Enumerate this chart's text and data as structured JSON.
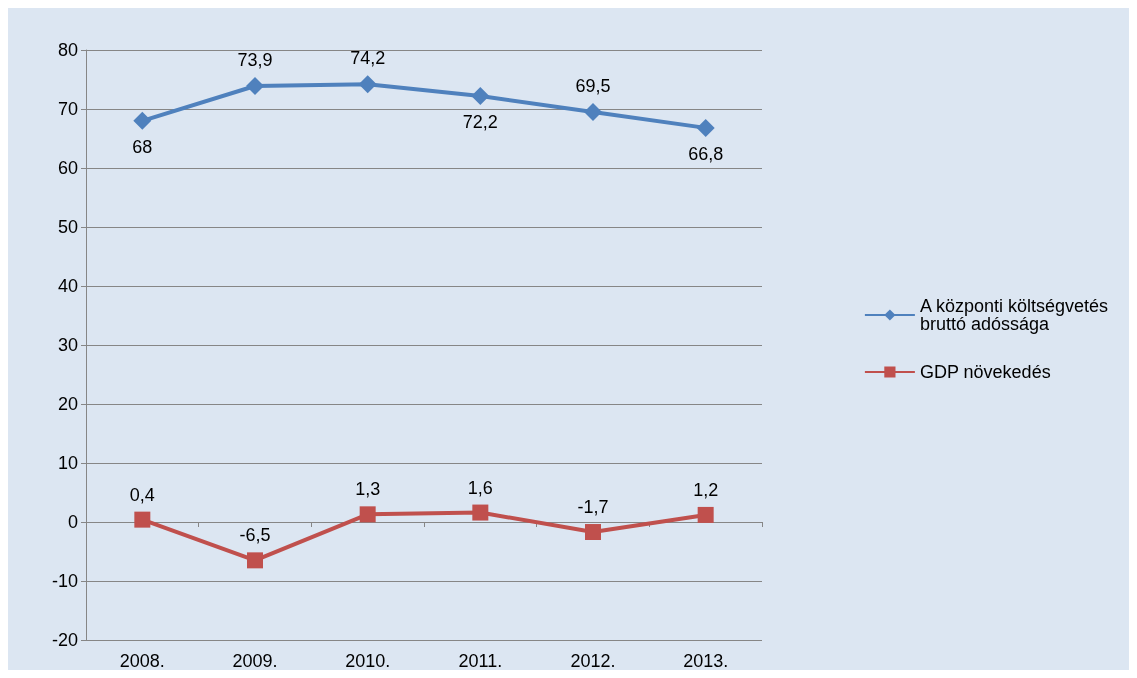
{
  "chart_data": {
    "type": "line",
    "categories": [
      "2008.",
      "2009.",
      "2010.",
      "2011.",
      "2012.",
      "2013."
    ],
    "series": [
      {
        "name": "A központi költségvetés bruttó adóssága",
        "color": "#4f81bd",
        "marker": "diamond",
        "values": [
          68,
          73.9,
          74.2,
          72.2,
          69.5,
          66.8
        ],
        "value_labels": [
          "68",
          "73,9",
          "74,2",
          "72,2",
          "69,5",
          "66,8"
        ]
      },
      {
        "name": "GDP növekedés",
        "color": "#c0504d",
        "marker": "square",
        "values": [
          0.4,
          -6.5,
          1.3,
          1.6,
          -1.7,
          1.2
        ],
        "value_labels": [
          "0,4",
          "-6,5",
          "1,3",
          "1,6",
          "-1,7",
          "1,2"
        ]
      }
    ],
    "ylim": [
      -20,
      80
    ],
    "yticks": [
      -20,
      -10,
      0,
      10,
      20,
      30,
      40,
      50,
      60,
      70,
      80
    ],
    "grid": "y",
    "legend": "right"
  }
}
